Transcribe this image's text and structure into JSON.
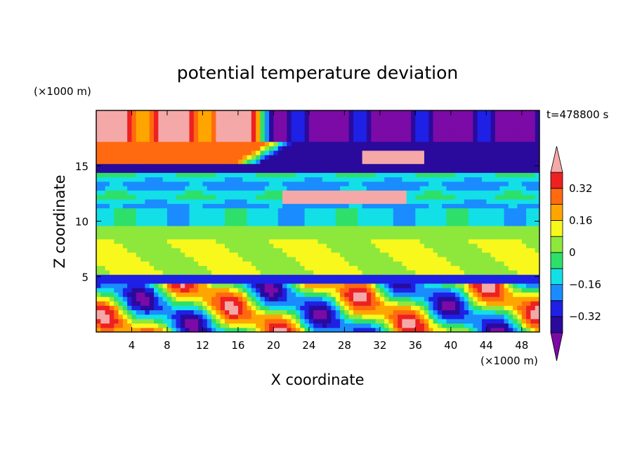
{
  "chart_data": {
    "type": "heatmap",
    "title": "potential temperature deviation",
    "xlabel": "X coordinate",
    "ylabel": "Z coordinate",
    "x_unit": "(×1000 m)",
    "y_unit": "(×1000 m)",
    "time_label": "t=478800 s",
    "xlim": [
      0,
      50
    ],
    "ylim": [
      0,
      20
    ],
    "x_ticks": [
      4,
      8,
      12,
      16,
      20,
      24,
      28,
      32,
      36,
      40,
      44,
      48
    ],
    "y_ticks": [
      5,
      10,
      15
    ],
    "colorbar": {
      "levels": [
        -0.4,
        -0.32,
        -0.24,
        -0.16,
        -0.08,
        0,
        0.08,
        0.16,
        0.24,
        0.32,
        0.4
      ],
      "tick_labels": [
        "0.32",
        "0.16",
        "0",
        "−0.16",
        "−0.32"
      ],
      "tick_values": [
        0.32,
        0.16,
        0,
        -0.16,
        -0.32
      ],
      "colors_low_to_high": [
        "#7b0aa6",
        "#2a0a9c",
        "#1e20e6",
        "#1a8cff",
        "#12e0e6",
        "#2ee06a",
        "#8ee83c",
        "#f8f81c",
        "#ffa500",
        "#ff6a10",
        "#ee2020",
        "#f4a8a8"
      ],
      "extend": "both"
    }
  }
}
